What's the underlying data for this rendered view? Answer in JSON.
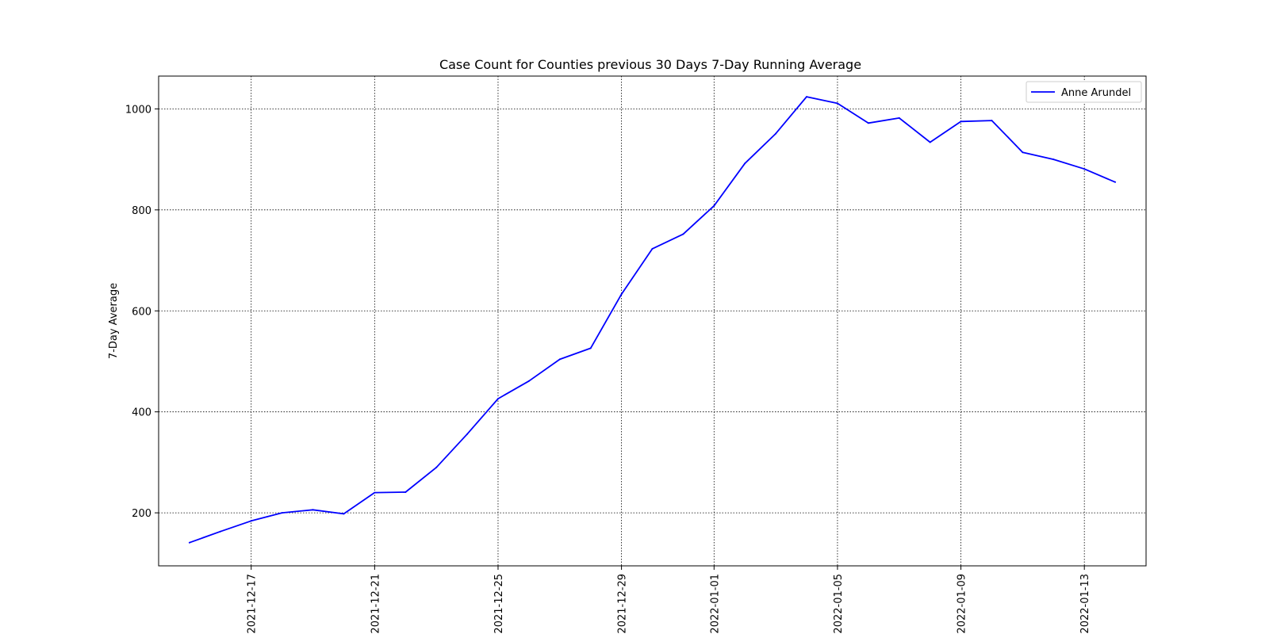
{
  "chart_data": {
    "type": "line",
    "title": "Case Count for Counties previous 30 Days 7-Day Running Average",
    "xlabel": "",
    "ylabel": "7-Day Average",
    "xlim": [
      "2021-12-14",
      "2022-01-15"
    ],
    "ylim": [
      95,
      1065
    ],
    "grid": true,
    "legend_position": "top-right",
    "x_ticks": [
      "2021-12-17",
      "2021-12-21",
      "2021-12-25",
      "2021-12-29",
      "2022-01-01",
      "2022-01-05",
      "2022-01-09",
      "2022-01-13"
    ],
    "y_ticks": [
      200,
      400,
      600,
      800,
      1000
    ],
    "x": [
      "2021-12-15",
      "2021-12-16",
      "2021-12-17",
      "2021-12-18",
      "2021-12-19",
      "2021-12-20",
      "2021-12-21",
      "2021-12-22",
      "2021-12-23",
      "2021-12-24",
      "2021-12-25",
      "2021-12-26",
      "2021-12-27",
      "2021-12-28",
      "2021-12-29",
      "2021-12-30",
      "2021-12-31",
      "2022-01-01",
      "2022-01-02",
      "2022-01-03",
      "2022-01-04",
      "2022-01-05",
      "2022-01-06",
      "2022-01-07",
      "2022-01-08",
      "2022-01-09",
      "2022-01-10",
      "2022-01-11",
      "2022-01-12",
      "2022-01-13",
      "2022-01-14"
    ],
    "series": [
      {
        "name": "Anne Arundel",
        "color": "#0000ff",
        "values": [
          141,
          163,
          184,
          200,
          206,
          198,
          240,
          241,
          290,
          356,
          426,
          461,
          504,
          526,
          633,
          723,
          752,
          808,
          892,
          951,
          1024,
          1011,
          972,
          982,
          934,
          975,
          977,
          914,
          900,
          881,
          855
        ]
      }
    ]
  }
}
